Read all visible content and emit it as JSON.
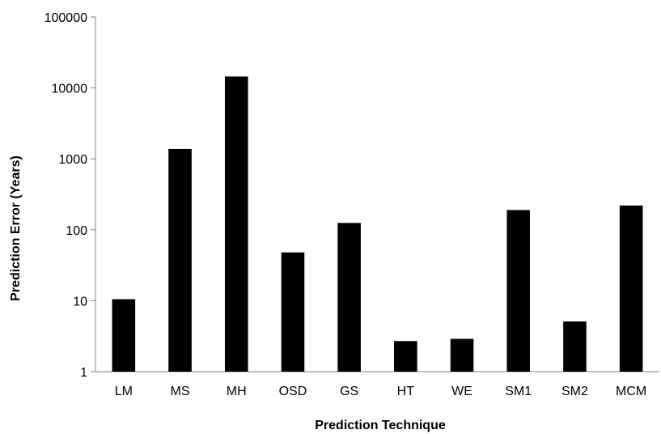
{
  "chart_data": {
    "type": "bar",
    "title": "",
    "xlabel": "Prediction Technique",
    "ylabel": "Prediction Error (Years)",
    "yscale": "log",
    "ylim": [
      1,
      100000
    ],
    "yticks": [
      "1",
      "10",
      "100",
      "1000",
      "10000",
      "100000"
    ],
    "grid": false,
    "legend": "none",
    "bar_color": "#000000",
    "categories": [
      "LM",
      "MS",
      "MH",
      "OSD",
      "GS",
      "HT",
      "WE",
      "SM1",
      "SM2",
      "MCM"
    ],
    "values": [
      10.5,
      1380,
      14500,
      48,
      125,
      2.7,
      2.9,
      190,
      5.1,
      220
    ]
  }
}
